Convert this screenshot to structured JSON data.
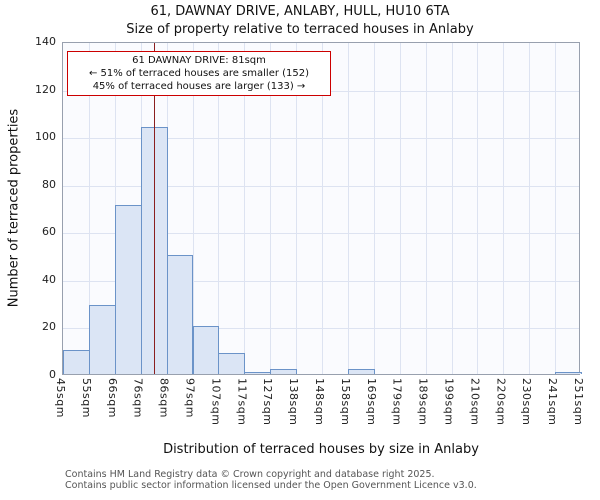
{
  "header": {
    "title": "61, DAWNAY DRIVE, ANLABY, HULL, HU10 6TA",
    "subtitle": "Size of property relative to terraced houses in Anlaby"
  },
  "chart_data": {
    "type": "bar",
    "title": "61, DAWNAY DRIVE, ANLABY, HULL, HU10 6TA",
    "subtitle": "Size of property relative to terraced houses in Anlaby",
    "xlabel": "Distribution of terraced houses by size in Anlaby",
    "ylabel": "Number of terraced properties",
    "ylim": [
      0,
      140
    ],
    "yticks": [
      0,
      20,
      40,
      60,
      80,
      100,
      120,
      140
    ],
    "grid": true,
    "legend": false,
    "categories": [
      "45sqm",
      "55sqm",
      "66sqm",
      "76sqm",
      "86sqm",
      "97sqm",
      "107sqm",
      "117sqm",
      "127sqm",
      "138sqm",
      "148sqm",
      "158sqm",
      "169sqm",
      "179sqm",
      "189sqm",
      "199sqm",
      "210sqm",
      "220sqm",
      "230sqm",
      "241sqm",
      "251sqm"
    ],
    "values": [
      10,
      29,
      71,
      104,
      50,
      20,
      9,
      1,
      2,
      0,
      0,
      2,
      0,
      0,
      0,
      0,
      0,
      0,
      0,
      1
    ],
    "bar_fill": "#dbe5f5",
    "bar_edge": "#6b93c8",
    "marker": {
      "value": 81,
      "color": "#8b1f1f"
    }
  },
  "annotation": {
    "line1": "61 DAWNAY DRIVE: 81sqm",
    "line2": "← 51% of terraced houses are smaller (152)",
    "line3": "45% of terraced houses are larger (133) →",
    "border_color": "#cc0000"
  },
  "footer": {
    "line1": "Contains HM Land Registry data © Crown copyright and database right 2025.",
    "line2": "Contains public sector information licensed under the Open Government Licence v3.0."
  }
}
